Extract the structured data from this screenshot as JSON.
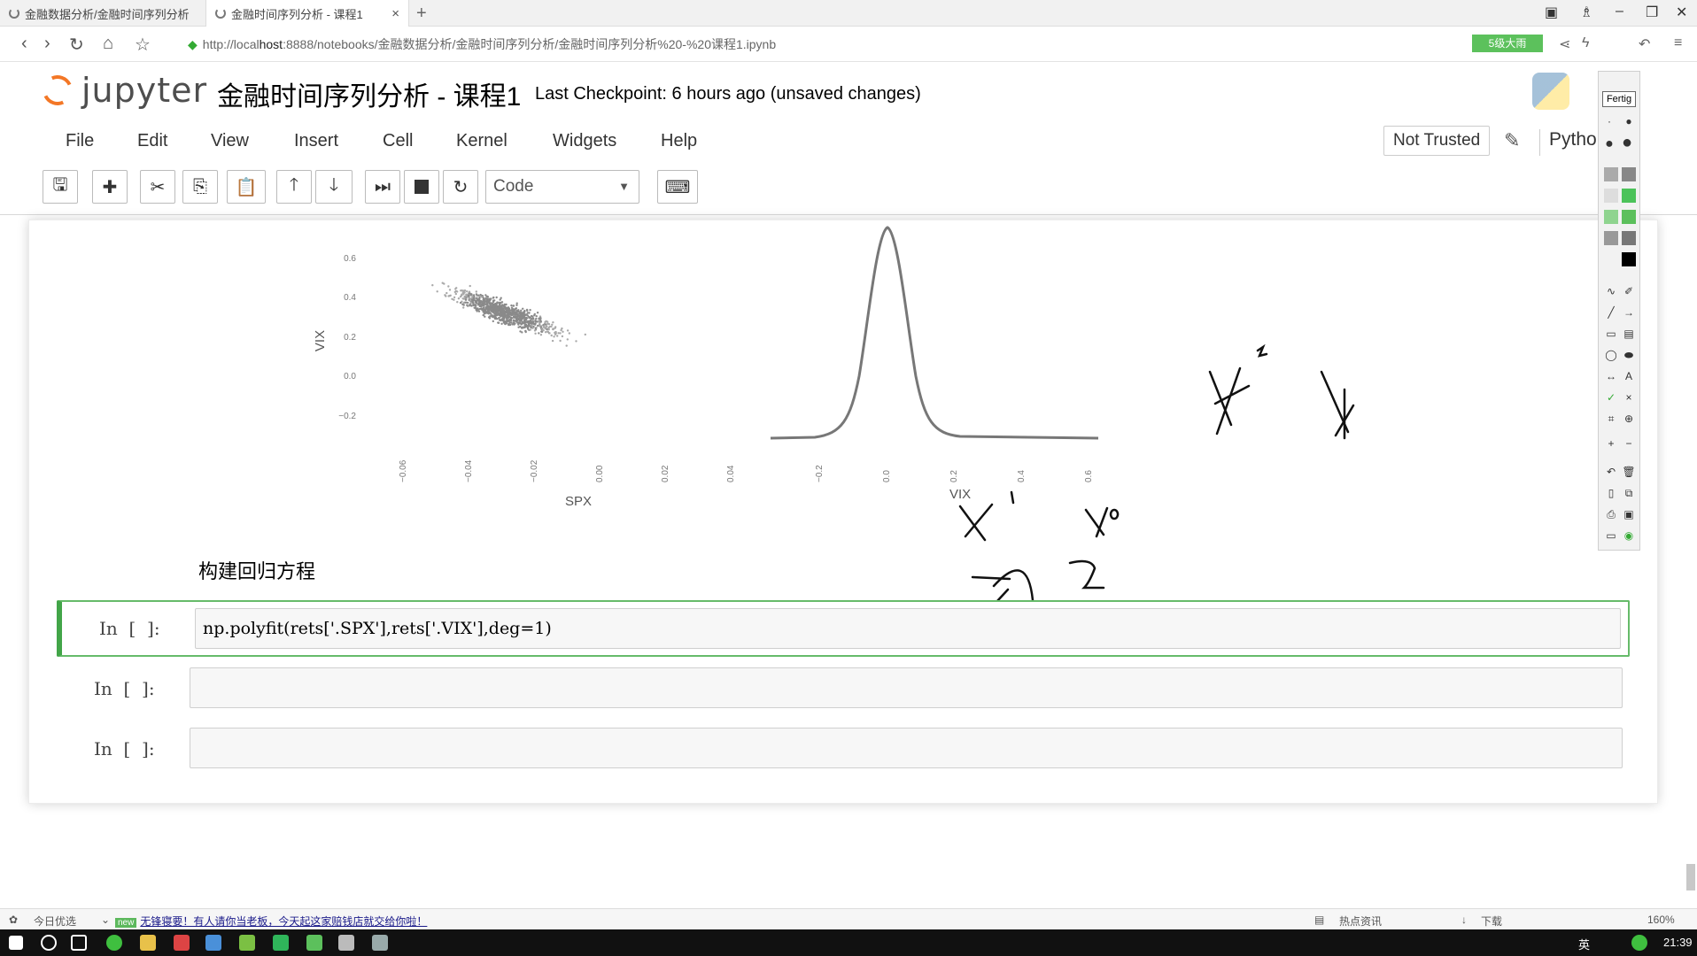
{
  "browser": {
    "tabs": [
      {
        "title": "金融数据分析/金融时间序列分析"
      },
      {
        "title": "金融时间序列分析 - 课程1",
        "close": "×"
      }
    ],
    "new_tab": "+",
    "url_prefix": "http://local",
    "url_host": "host",
    "url_rest": ":8888/notebooks/金融数据分析/金融时间序列分析/金融时间序列分析%20-%20课程1.ipynb",
    "badge": "5级大雨"
  },
  "jupyter": {
    "logo_text": "jupyter",
    "notebook_title": "金融时间序列分析 - 课程1",
    "checkpoint": "Last Checkpoint: 6 hours ago (unsaved changes)",
    "menu": [
      "File",
      "Edit",
      "View",
      "Insert",
      "Cell",
      "Kernel",
      "Widgets",
      "Help"
    ],
    "trusted": "Not Trusted",
    "kernel": "Pytho",
    "cell_type": "Code",
    "toolbar_icons": [
      "save-icon",
      "plus-icon",
      "cut-icon",
      "copy-icon",
      "paste-icon",
      "arrow-up-icon",
      "arrow-down-icon",
      "run-icon",
      "stop-icon",
      "restart-icon",
      "keyboard-icon"
    ]
  },
  "plots": {
    "scatter": {
      "ylabel": "VIX",
      "xlabel": "SPX",
      "yticks": [
        "0.6",
        "0.4",
        "0.2",
        "0.0",
        "−0.2"
      ],
      "xticks": [
        "−0.06",
        "−0.04",
        "−0.02",
        "0.00",
        "0.02",
        "0.04"
      ]
    },
    "kde": {
      "xlabel": "VIX",
      "xticks": [
        "−0.2",
        "0.0",
        "0.2",
        "0.4",
        "0.6"
      ]
    }
  },
  "notebook": {
    "markdown_heading": "构建回归方程",
    "cells": [
      {
        "prompt": "In  [  ]:",
        "source": "np.polyfit(rets['.SPX'],rets['.VIX'],deg=1)"
      },
      {
        "prompt": "In  [  ]:",
        "source": ""
      },
      {
        "prompt": "In  [  ]:",
        "source": ""
      }
    ]
  },
  "palette": {
    "done_label": "Fertig",
    "text_tool": "A",
    "close_tool": "×"
  },
  "statusbar": {
    "left": "今日优选",
    "hot": "new",
    "news": "无锋寝要！有人请你当老板，今天起这家赔钱店就交给你啦！",
    "hotnews": "热点资讯",
    "download": "下载",
    "zoom": "160%"
  },
  "taskbar": {
    "ime": "英",
    "time": "21:39"
  },
  "colors": {
    "accent_green": "#42a548",
    "jupyter_orange": "#f37726",
    "prompt_blue": "#303f9f"
  }
}
